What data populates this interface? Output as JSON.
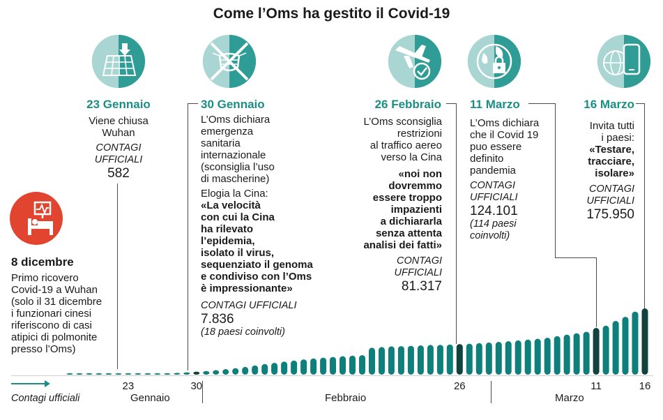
{
  "title": "Come l’Oms ha gestito il Covid-19",
  "colors": {
    "teal": "#1b8d87",
    "bar": "#0e7f7a",
    "bar_highlight": "#11423d",
    "light_teal": "#a9d6d3",
    "red": "#e2452f"
  },
  "icons": [
    "hospital-bed-icon",
    "map-grid-download-icon",
    "crossed-mask-icon",
    "airplane-check-icon",
    "globe-lock-icon",
    "smartphone-globe-icon"
  ],
  "events": {
    "dec8": {
      "date": "8 dicembre",
      "lines": [
        "Primo ricovero",
        "Covid-19 a Wuhan",
        "(solo il 31 dicembre",
        "i funzionari cinesi",
        "riferiscono di casi",
        "atipici di polmonite",
        "presso l’Oms)"
      ]
    },
    "jan23": {
      "date": "23 Gennaio",
      "lines": [
        "Viene chiusa",
        "Wuhan"
      ],
      "label": [
        "CONTAGI",
        "UFFICIALI"
      ],
      "number": "582"
    },
    "jan30": {
      "date": "30 Gennaio",
      "lines": [
        "L’Oms dichiara",
        "emergenza",
        "sanitaria",
        "internazionale",
        "(sconsiglia l’uso",
        "di mascherine)",
        "Elogia la Cina:"
      ],
      "quote": [
        "«La velocità",
        "con cui la Cina",
        "ha rilevato",
        "l’epidemia,",
        "isolato il virus,",
        "sequenziato il genoma",
        "e condiviso con l’Oms",
        "è impressionante»"
      ],
      "label": "CONTAGI UFFICIALI",
      "number": "7.836",
      "note": "(18 paesi coinvolti)"
    },
    "feb26": {
      "date": "26 Febbraio",
      "lines": [
        "L’Oms sconsiglia",
        "restrizioni",
        "al traffico aereo",
        "verso la Cina"
      ],
      "quote": [
        "«noi non",
        "dovremmo",
        "essere troppo",
        "impazienti",
        "a dichiararla",
        "senza attenta",
        "analisi dei fatti»"
      ],
      "label": [
        "CONTAGI",
        "UFFICIALI"
      ],
      "number": "81.317"
    },
    "mar11": {
      "date": "11 Marzo",
      "lines": [
        "L’Oms dichiara",
        "che  il Covid 19",
        "puo essere",
        "definito",
        "pandemia"
      ],
      "label": [
        "CONTAGI",
        "UFFICIALI"
      ],
      "number": "124.101",
      "note": [
        "(114 paesi",
        "coinvolti)"
      ]
    },
    "mar16": {
      "date": "16 Marzo",
      "lines": [
        "Invita tutti",
        "i paesi:"
      ],
      "quote": [
        "«Testare,",
        "tracciare,",
        "isolare»"
      ],
      "label": [
        "CONTAGI",
        "UFFICIALI"
      ],
      "number": "175.950"
    }
  },
  "axis": {
    "legend": "Contagi ufficiali",
    "months": [
      "Gennaio",
      "Febbraio",
      "Marzo"
    ]
  },
  "chart_data": {
    "type": "bar",
    "series_name": "Contagi ufficiali",
    "start": "2020-01-17",
    "end": "2020-03-16",
    "tick_labels": [
      "23",
      "30",
      "26",
      "11",
      "16"
    ],
    "tick_dates": [
      "2020-01-23",
      "2020-01-30",
      "2020-02-26",
      "2020-03-11",
      "2020-03-16"
    ],
    "highlight_dates": [
      "2020-01-30",
      "2020-02-26",
      "2020-03-11",
      "2020-03-16"
    ],
    "x": [
      "2020-01-17",
      "2020-01-18",
      "2020-01-19",
      "2020-01-20",
      "2020-01-21",
      "2020-01-22",
      "2020-01-23",
      "2020-01-24",
      "2020-01-25",
      "2020-01-26",
      "2020-01-27",
      "2020-01-28",
      "2020-01-29",
      "2020-01-30",
      "2020-01-31",
      "2020-02-01",
      "2020-02-02",
      "2020-02-03",
      "2020-02-04",
      "2020-02-05",
      "2020-02-06",
      "2020-02-07",
      "2020-02-08",
      "2020-02-09",
      "2020-02-10",
      "2020-02-11",
      "2020-02-12",
      "2020-02-13",
      "2020-02-14",
      "2020-02-15",
      "2020-02-16",
      "2020-02-17",
      "2020-02-18",
      "2020-02-19",
      "2020-02-20",
      "2020-02-21",
      "2020-02-22",
      "2020-02-23",
      "2020-02-24",
      "2020-02-25",
      "2020-02-26",
      "2020-02-27",
      "2020-02-28",
      "2020-02-29",
      "2020-03-01",
      "2020-03-02",
      "2020-03-03",
      "2020-03-04",
      "2020-03-05",
      "2020-03-06",
      "2020-03-07",
      "2020-03-08",
      "2020-03-09",
      "2020-03-10",
      "2020-03-11",
      "2020-03-12",
      "2020-03-13",
      "2020-03-14",
      "2020-03-15",
      "2020-03-16"
    ],
    "values": [
      62,
      121,
      198,
      291,
      440,
      571,
      582,
      845,
      1320,
      2014,
      2798,
      4593,
      6065,
      7836,
      9826,
      11953,
      14557,
      17391,
      20630,
      24554,
      28276,
      31481,
      34886,
      37558,
      40554,
      43103,
      45171,
      46997,
      49053,
      50580,
      51857,
      71429,
      73332,
      75204,
      75748,
      76769,
      77794,
      78811,
      79331,
      80239,
      81317,
      82294,
      83652,
      85403,
      87137,
      88948,
      90869,
      93091,
      95324,
      98192,
      102242,
      106219,
      109997,
      113812,
      124101,
      130000,
      142534,
      153517,
      167511,
      175950
    ]
  }
}
